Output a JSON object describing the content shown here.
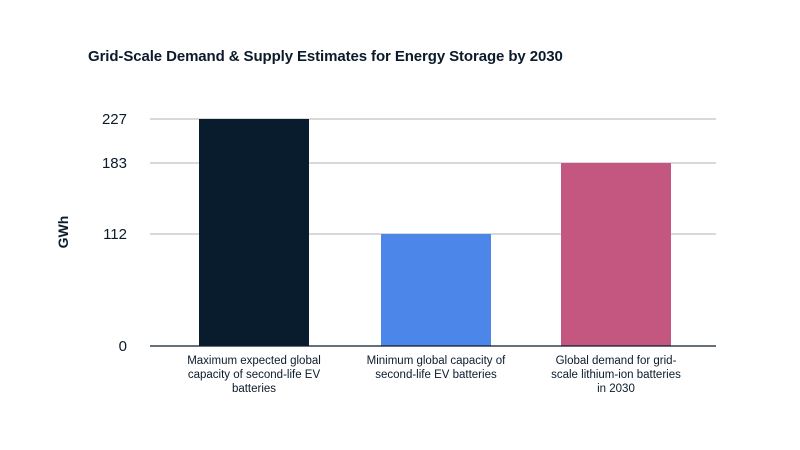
{
  "chart_data": {
    "type": "bar",
    "title": "Grid-Scale Demand & Supply Estimates for Energy Storage by 2030",
    "xlabel": "",
    "ylabel": "GWh",
    "ylim": [
      0,
      227
    ],
    "yticks": [
      0,
      112,
      183,
      227
    ],
    "grid": true,
    "categories": [
      "Maximum expected global capacity of second-life EV batteries",
      "Minimum global capacity of second-life EV batteries",
      "Global demand for grid-scale lithium-ion batteries in 2030"
    ],
    "category_display": [
      "Maximum expected global capacity of second-life EV batteries",
      "Minimum global capacity of second-life EV batteries",
      "Global demand for grid- scale lithium-ion batteries in 2030"
    ],
    "values": [
      227,
      112,
      183
    ],
    "colors": [
      "#081c2e",
      "#4c86e8",
      "#c3577f"
    ]
  },
  "colors": {
    "text": "#0b1b2b",
    "grid": "#b3b3b3",
    "axis": "#0b1b2b"
  }
}
